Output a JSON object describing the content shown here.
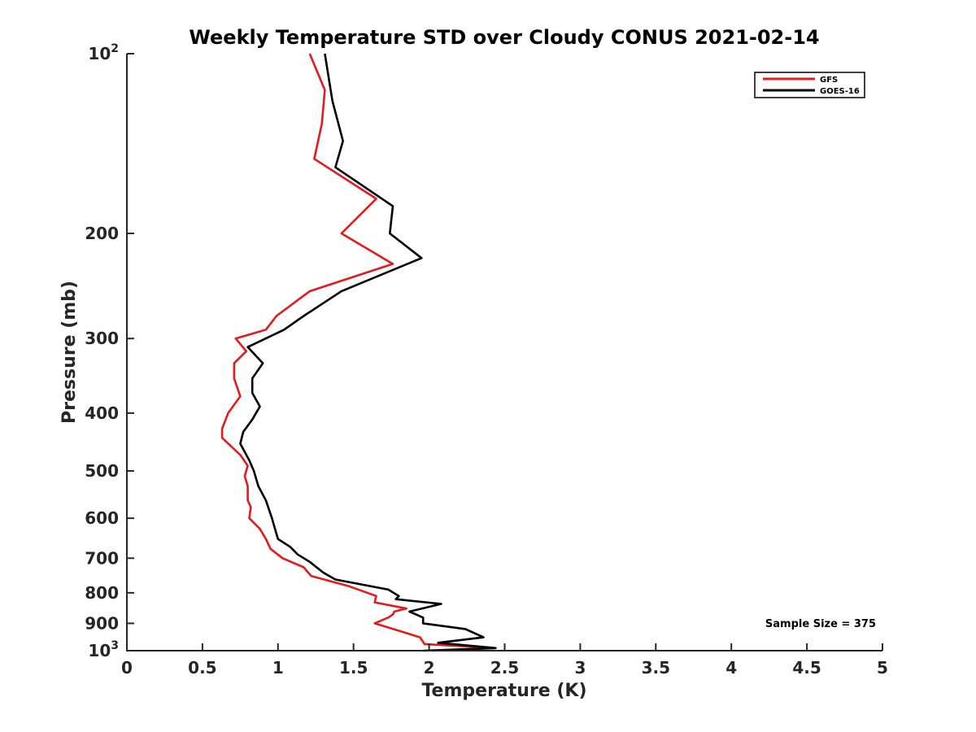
{
  "chart_data": {
    "type": "line",
    "title": "Weekly Temperature STD over Cloudy CONUS 2021-02-14",
    "xlabel": "Temperature (K)",
    "ylabel": "Pressure (mb)",
    "xlim": [
      0,
      5
    ],
    "ylim": [
      100,
      1000
    ],
    "y_scale": "log",
    "y_reversed": true,
    "x_ticks": [
      "0",
      "0.5",
      "1",
      "1.5",
      "2",
      "2.5",
      "3",
      "3.5",
      "4",
      "4.5",
      "5"
    ],
    "y_ticks": [
      {
        "value": 100,
        "base": "10",
        "exp": "2"
      },
      {
        "value": 200,
        "label": "200"
      },
      {
        "value": 300,
        "label": "300"
      },
      {
        "value": 400,
        "label": "400"
      },
      {
        "value": 500,
        "label": "500"
      },
      {
        "value": 600,
        "label": "600"
      },
      {
        "value": 700,
        "label": "700"
      },
      {
        "value": 800,
        "label": "800"
      },
      {
        "value": 900,
        "label": "900"
      },
      {
        "value": 1000,
        "base": "10",
        "exp": "3"
      }
    ],
    "legend_position": "top-right",
    "annotation": "Sample Size = 375",
    "series": [
      {
        "name": "GFS",
        "color": "#e41a1c",
        "points": [
          [
            1.21,
            100
          ],
          [
            1.31,
            115
          ],
          [
            1.29,
            131
          ],
          [
            1.24,
            150
          ],
          [
            1.65,
            175
          ],
          [
            1.42,
            200
          ],
          [
            1.76,
            225
          ],
          [
            1.21,
            250
          ],
          [
            0.99,
            275
          ],
          [
            0.92,
            290
          ],
          [
            0.72,
            300
          ],
          [
            0.79,
            315
          ],
          [
            0.71,
            330
          ],
          [
            0.71,
            350
          ],
          [
            0.75,
            375
          ],
          [
            0.67,
            400
          ],
          [
            0.63,
            425
          ],
          [
            0.63,
            440
          ],
          [
            0.75,
            470
          ],
          [
            0.8,
            490
          ],
          [
            0.78,
            510
          ],
          [
            0.8,
            530
          ],
          [
            0.8,
            560
          ],
          [
            0.82,
            575
          ],
          [
            0.81,
            600
          ],
          [
            0.88,
            625
          ],
          [
            0.92,
            650
          ],
          [
            0.95,
            675
          ],
          [
            1.03,
            700
          ],
          [
            1.17,
            725
          ],
          [
            1.2,
            740
          ],
          [
            1.22,
            750
          ],
          [
            1.47,
            780
          ],
          [
            1.65,
            810
          ],
          [
            1.64,
            830
          ],
          [
            1.85,
            850
          ],
          [
            1.77,
            860
          ],
          [
            1.76,
            870
          ],
          [
            1.73,
            880
          ],
          [
            1.64,
            900
          ],
          [
            1.94,
            950
          ],
          [
            1.97,
            975
          ],
          [
            2.44,
            990
          ],
          [
            2.02,
            1000
          ]
        ]
      },
      {
        "name": "GOES-16",
        "color": "#000000",
        "points": [
          [
            1.31,
            100
          ],
          [
            1.36,
            120
          ],
          [
            1.43,
            140
          ],
          [
            1.38,
            155
          ],
          [
            1.76,
            180
          ],
          [
            1.74,
            200
          ],
          [
            1.95,
            220
          ],
          [
            1.42,
            250
          ],
          [
            1.17,
            275
          ],
          [
            1.04,
            290
          ],
          [
            0.8,
            310
          ],
          [
            0.9,
            330
          ],
          [
            0.83,
            350
          ],
          [
            0.83,
            370
          ],
          [
            0.88,
            390
          ],
          [
            0.83,
            410
          ],
          [
            0.77,
            430
          ],
          [
            0.75,
            450
          ],
          [
            0.81,
            480
          ],
          [
            0.84,
            500
          ],
          [
            0.87,
            530
          ],
          [
            0.92,
            560
          ],
          [
            0.96,
            600
          ],
          [
            0.98,
            625
          ],
          [
            1.0,
            650
          ],
          [
            1.08,
            670
          ],
          [
            1.13,
            690
          ],
          [
            1.21,
            710
          ],
          [
            1.3,
            740
          ],
          [
            1.38,
            760
          ],
          [
            1.73,
            790
          ],
          [
            1.8,
            810
          ],
          [
            1.78,
            820
          ],
          [
            2.08,
            835
          ],
          [
            1.87,
            860
          ],
          [
            1.96,
            880
          ],
          [
            1.96,
            900
          ],
          [
            2.24,
            920
          ],
          [
            2.36,
            950
          ],
          [
            2.06,
            970
          ],
          [
            2.44,
            990
          ],
          [
            1.96,
            1000
          ]
        ]
      }
    ]
  }
}
